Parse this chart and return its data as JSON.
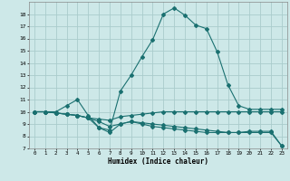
{
  "xlabel": "Humidex (Indice chaleur)",
  "xlim": [
    -0.5,
    23.5
  ],
  "ylim": [
    7,
    19
  ],
  "xticks": [
    0,
    1,
    2,
    3,
    4,
    5,
    6,
    7,
    8,
    9,
    10,
    11,
    12,
    13,
    14,
    15,
    16,
    17,
    18,
    19,
    20,
    21,
    22,
    23
  ],
  "yticks": [
    7,
    8,
    9,
    10,
    11,
    12,
    13,
    14,
    15,
    16,
    17,
    18
  ],
  "background_color": "#cde8e8",
  "grid_color": "#aacccc",
  "line_color": "#1a7070",
  "line1_y": [
    10.0,
    10.0,
    10.0,
    10.5,
    11.0,
    9.7,
    8.7,
    8.5,
    11.7,
    13.0,
    14.5,
    15.9,
    18.0,
    18.5,
    17.9,
    17.1,
    16.8,
    14.9,
    12.2,
    10.5,
    10.2,
    10.2,
    10.2,
    10.2
  ],
  "line2_y": [
    10.0,
    10.0,
    9.9,
    9.8,
    9.7,
    9.5,
    9.4,
    9.3,
    9.6,
    9.7,
    9.8,
    9.9,
    10.0,
    10.0,
    10.0,
    10.0,
    10.0,
    10.0,
    10.0,
    10.0,
    10.0,
    10.0,
    10.0,
    10.0
  ],
  "line3_y": [
    10.0,
    10.0,
    9.9,
    9.8,
    9.7,
    9.5,
    8.7,
    8.3,
    9.0,
    9.2,
    9.1,
    9.0,
    8.9,
    8.8,
    8.7,
    8.6,
    8.5,
    8.4,
    8.3,
    8.3,
    8.3,
    8.3,
    8.3,
    7.2
  ],
  "line4_y": [
    10.0,
    10.0,
    9.9,
    9.8,
    9.7,
    9.5,
    9.2,
    8.8,
    9.0,
    9.2,
    9.0,
    8.8,
    8.7,
    8.6,
    8.5,
    8.4,
    8.3,
    8.3,
    8.3,
    8.3,
    8.4,
    8.4,
    8.4,
    7.2
  ]
}
